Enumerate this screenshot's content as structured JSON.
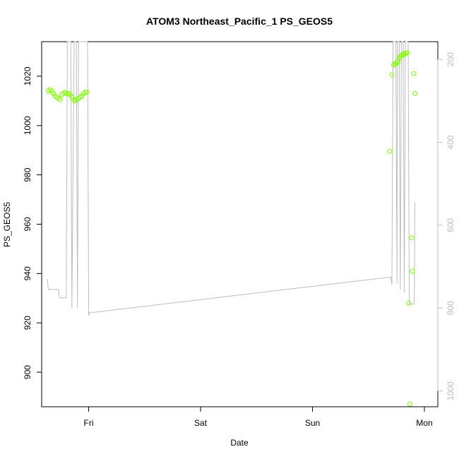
{
  "chart_data": {
    "type": "scatter",
    "title": "ATOM3 Northeast_Pacific_1 PS_GEOS5",
    "xlabel": "Date",
    "ylabel": "PS_GEOS5",
    "x_ticks": [
      "Fri",
      "Sat",
      "Sun",
      "Mon"
    ],
    "x_tick_positions_days": [
      0,
      1,
      2,
      3
    ],
    "xlim_days": [
      -0.42,
      3.12
    ],
    "ylim": [
      886,
      1034
    ],
    "y_ticks": [
      900,
      920,
      940,
      960,
      980,
      1000,
      1020
    ],
    "y2_ticks": [
      200,
      400,
      600,
      800,
      1000
    ],
    "y2lim": [
      1038,
      157
    ],
    "grid": false,
    "colors": {
      "points": "#7fff00",
      "altitude_line": "#bdbdbd",
      "axes": "#000000",
      "right_axis": "#bdbdbd"
    },
    "series": [
      {
        "type": "points",
        "x_days": [
          -0.36,
          -0.345,
          -0.33,
          -0.315,
          -0.3,
          -0.285,
          -0.27,
          -0.255,
          -0.24,
          -0.225,
          -0.21,
          -0.195,
          -0.18,
          -0.165,
          -0.15,
          -0.135,
          -0.12,
          -0.105,
          -0.09,
          -0.075,
          -0.06,
          -0.045,
          -0.03,
          -0.015,
          2.69,
          2.71,
          2.725,
          2.735,
          2.745,
          2.755,
          2.765,
          2.775,
          2.785,
          2.795,
          2.805,
          2.815,
          2.825,
          2.835,
          2.845,
          2.86,
          2.87,
          2.885,
          2.895,
          2.905,
          2.915
        ],
        "y": [
          1014,
          1014.5,
          1014,
          1013,
          1012,
          1011.5,
          1011,
          1010.5,
          1012.5,
          1013,
          1013.5,
          1013,
          1013,
          1012.5,
          1011.5,
          1010.5,
          1010,
          1010.5,
          1011,
          1011.5,
          1012,
          1013,
          1013.5,
          1013.5,
          989.5,
          1020.5,
          1024.5,
          1025,
          1025,
          1025.5,
          1026,
          1027.5,
          1028,
          1028.5,
          1028.5,
          1029,
          1029,
          1029.5,
          1029.5,
          928,
          887,
          954.5,
          941,
          1021,
          1013
        ]
      },
      {
        "type": "line",
        "axis": "right",
        "x_days": [
          -0.37,
          -0.36,
          -0.33,
          -0.27,
          -0.265,
          -0.26,
          -0.2,
          -0.19,
          -0.18,
          -0.17,
          -0.16,
          -0.15,
          -0.13,
          -0.12,
          -0.11,
          -0.1,
          -0.09,
          -0.08,
          -0.06,
          -0.05,
          -0.04,
          -0.03,
          -0.02,
          -0.01,
          0,
          0.01,
          0.05,
          2.7,
          2.71,
          2.72,
          2.73,
          2.745,
          2.755,
          2.76,
          2.77,
          2.775,
          2.785,
          2.795,
          2.805,
          2.81,
          2.82,
          2.83,
          2.835,
          2.845,
          2.855,
          2.865,
          2.875,
          2.9,
          2.91,
          2.915
        ],
        "y": [
          730,
          755,
          755,
          755,
          770,
          775,
          775,
          150,
          150,
          150,
          150,
          800,
          150,
          150,
          150,
          800,
          150,
          150,
          150,
          150,
          150,
          150,
          150,
          150,
          818,
          810,
          810,
          725,
          743,
          150,
          150,
          150,
          740,
          150,
          150,
          150,
          755,
          150,
          150,
          150,
          762,
          150,
          150,
          150,
          150,
          790,
          790,
          790,
          790,
          545
        ]
      }
    ]
  }
}
